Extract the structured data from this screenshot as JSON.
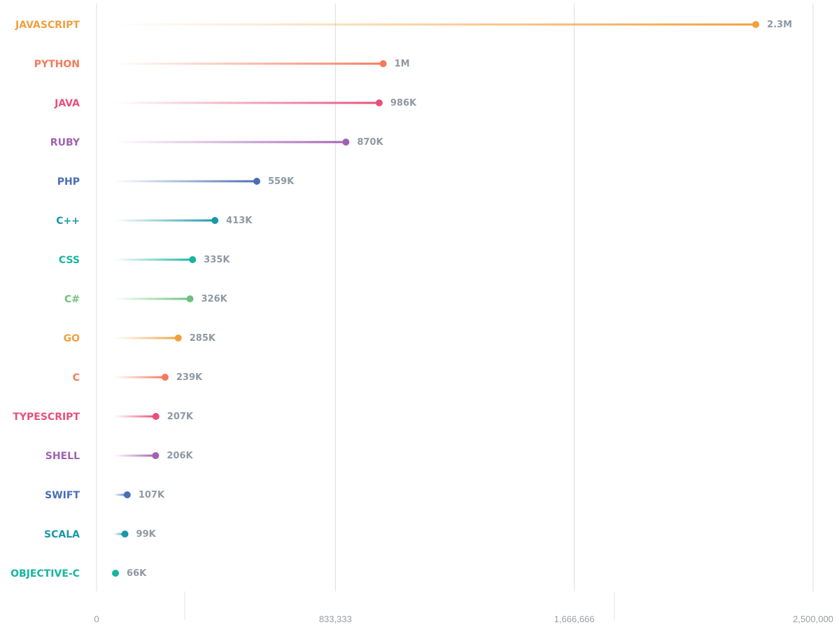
{
  "chart_data": {
    "type": "lollipop",
    "title": "",
    "xlabel": "",
    "ylabel": "",
    "xlim": [
      0,
      2500000
    ],
    "x_ticks": [
      0,
      833333,
      1666666,
      2500000
    ],
    "x_tick_labels": [
      "0",
      "833,333",
      "1,666,666",
      "2,500,000"
    ],
    "grid": true,
    "categories": [
      "JAVASCRIPT",
      "PYTHON",
      "JAVA",
      "RUBY",
      "PHP",
      "C++",
      "CSS",
      "C#",
      "GO",
      "C",
      "TYPESCRIPT",
      "SHELL",
      "SWIFT",
      "SCALA",
      "OBJECTIVE-C"
    ],
    "values": [
      2300000,
      1000000,
      986000,
      870000,
      559000,
      413000,
      335000,
      326000,
      285000,
      239000,
      207000,
      206000,
      107000,
      99000,
      66000
    ],
    "value_labels": [
      "2.3M",
      "1M",
      "986K",
      "870K",
      "559K",
      "413K",
      "335K",
      "326K",
      "285K",
      "239K",
      "207K",
      "206K",
      "107K",
      "99K",
      "66K"
    ],
    "colors": [
      "#f0a040",
      "#f47a5a",
      "#e8507a",
      "#a062b0",
      "#4a6db8",
      "#1a98a8",
      "#17b5a0",
      "#6ec07e",
      "#f0a040",
      "#f47a5a",
      "#e8507a",
      "#a062b0",
      "#4a6db8",
      "#1a98a8",
      "#17b5a0"
    ]
  }
}
